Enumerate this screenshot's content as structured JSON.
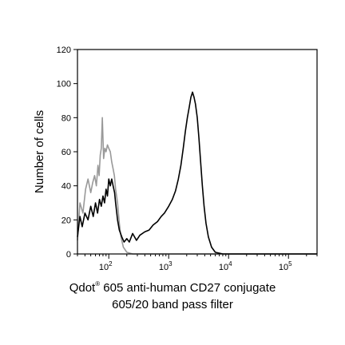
{
  "chart_data": {
    "type": "line",
    "ylabel": "Number of cells",
    "xlabel_line1_prefix": "Qdot",
    "xlabel_line1_sup": "®",
    "xlabel_line1_suffix": " 605 anti-human CD27 conjugate",
    "xlabel_line2": "605/20 band pass filter",
    "xscale": "log",
    "xlim": [
      30,
      300000
    ],
    "ylim": [
      0,
      120
    ],
    "yticks": [
      {
        "value": 0,
        "label": "0"
      },
      {
        "value": 20,
        "label": "20"
      },
      {
        "value": 40,
        "label": "40"
      },
      {
        "value": 60,
        "label": "60"
      },
      {
        "value": 80,
        "label": "80"
      },
      {
        "value": 100,
        "label": "100"
      },
      {
        "value": 120,
        "label": "120"
      }
    ],
    "xticks": [
      {
        "value": 100,
        "base": "10",
        "exp": "2"
      },
      {
        "value": 1000,
        "base": "10",
        "exp": "3"
      },
      {
        "value": 10000,
        "base": "10",
        "exp": "4"
      },
      {
        "value": 100000,
        "base": "10",
        "exp": "5"
      }
    ],
    "series": [
      {
        "color": "#999999",
        "points": [
          [
            30,
            8
          ],
          [
            33,
            30
          ],
          [
            37,
            24
          ],
          [
            41,
            38
          ],
          [
            45,
            44
          ],
          [
            50,
            36
          ],
          [
            54,
            42
          ],
          [
            58,
            46
          ],
          [
            62,
            40
          ],
          [
            66,
            52
          ],
          [
            69,
            46
          ],
          [
            72,
            58
          ],
          [
            75,
            62
          ],
          [
            78,
            80
          ],
          [
            82,
            56
          ],
          [
            86,
            62
          ],
          [
            90,
            60
          ],
          [
            95,
            64
          ],
          [
            100,
            62
          ],
          [
            106,
            60
          ],
          [
            112,
            54
          ],
          [
            118,
            50
          ],
          [
            124,
            46
          ],
          [
            130,
            38
          ],
          [
            140,
            30
          ],
          [
            150,
            18
          ],
          [
            160,
            10
          ],
          [
            175,
            4
          ],
          [
            200,
            1
          ],
          [
            250,
            0
          ],
          [
            400,
            0
          ],
          [
            300000,
            0
          ]
        ]
      },
      {
        "color": "#000000",
        "points": [
          [
            30,
            10
          ],
          [
            33,
            22
          ],
          [
            36,
            16
          ],
          [
            40,
            24
          ],
          [
            45,
            20
          ],
          [
            50,
            28
          ],
          [
            55,
            22
          ],
          [
            60,
            30
          ],
          [
            65,
            24
          ],
          [
            70,
            32
          ],
          [
            75,
            28
          ],
          [
            80,
            34
          ],
          [
            85,
            30
          ],
          [
            90,
            38
          ],
          [
            95,
            34
          ],
          [
            100,
            44
          ],
          [
            106,
            40
          ],
          [
            112,
            44
          ],
          [
            118,
            40
          ],
          [
            125,
            36
          ],
          [
            130,
            30
          ],
          [
            140,
            20
          ],
          [
            150,
            14
          ],
          [
            165,
            10
          ],
          [
            180,
            7
          ],
          [
            200,
            9
          ],
          [
            220,
            7
          ],
          [
            250,
            12
          ],
          [
            290,
            8
          ],
          [
            330,
            11
          ],
          [
            400,
            13
          ],
          [
            470,
            14
          ],
          [
            550,
            17
          ],
          [
            650,
            19
          ],
          [
            750,
            22
          ],
          [
            850,
            24
          ],
          [
            1000,
            28
          ],
          [
            1150,
            32
          ],
          [
            1300,
            37
          ],
          [
            1450,
            44
          ],
          [
            1600,
            52
          ],
          [
            1750,
            62
          ],
          [
            1900,
            72
          ],
          [
            2050,
            80
          ],
          [
            2200,
            86
          ],
          [
            2350,
            92
          ],
          [
            2500,
            95
          ],
          [
            2650,
            92
          ],
          [
            2800,
            88
          ],
          [
            3000,
            80
          ],
          [
            3200,
            68
          ],
          [
            3400,
            55
          ],
          [
            3650,
            40
          ],
          [
            3900,
            28
          ],
          [
            4200,
            18
          ],
          [
            4600,
            10
          ],
          [
            5200,
            4
          ],
          [
            6000,
            1
          ],
          [
            8000,
            0
          ],
          [
            300000,
            0
          ]
        ]
      }
    ]
  }
}
